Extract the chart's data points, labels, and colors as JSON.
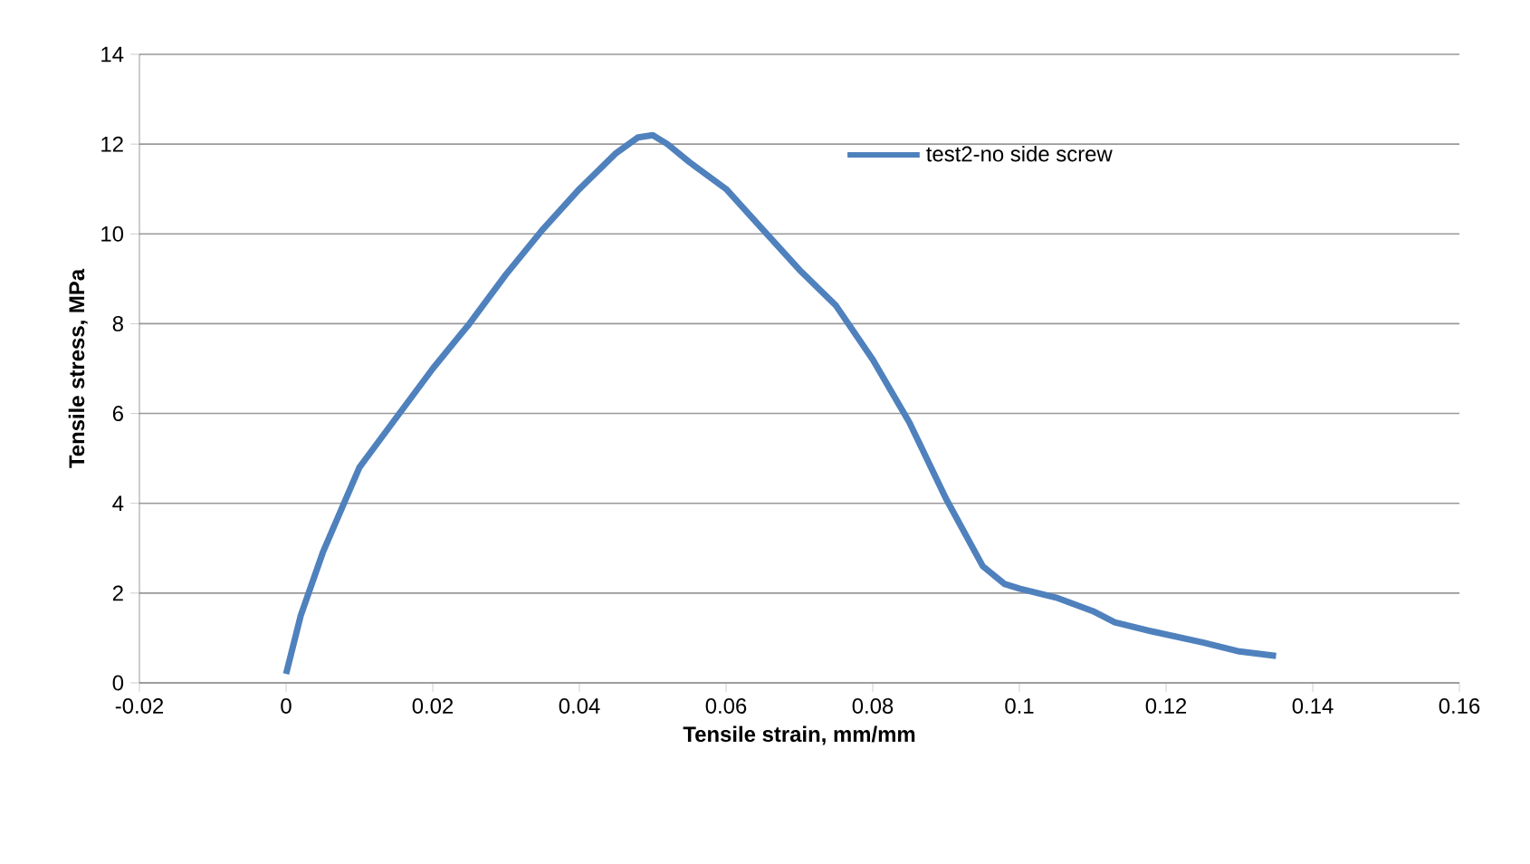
{
  "chart_data": {
    "type": "line",
    "xlabel": "Tensile strain, mm/mm",
    "ylabel": "Tensile stress, MPa",
    "series": [
      {
        "name": "test2-no side screw",
        "color": "#4f81bd",
        "x": [
          0,
          0.002,
          0.005,
          0.01,
          0.015,
          0.02,
          0.025,
          0.03,
          0.035,
          0.04,
          0.045,
          0.048,
          0.05,
          0.052,
          0.055,
          0.06,
          0.065,
          0.07,
          0.075,
          0.08,
          0.085,
          0.09,
          0.095,
          0.098,
          0.1,
          0.105,
          0.11,
          0.113,
          0.118,
          0.125,
          0.13,
          0.135
        ],
        "values": [
          0.2,
          1.5,
          2.9,
          4.8,
          5.9,
          7.0,
          8.0,
          9.1,
          10.1,
          11.0,
          11.8,
          12.15,
          12.2,
          12.0,
          11.6,
          11.0,
          10.1,
          9.2,
          8.4,
          7.2,
          5.8,
          4.1,
          2.6,
          2.2,
          2.1,
          1.9,
          1.6,
          1.35,
          1.15,
          0.9,
          0.7,
          0.6
        ]
      }
    ],
    "xlim": [
      -0.02,
      0.16
    ],
    "xticks": [
      -0.02,
      0,
      0.02,
      0.04,
      0.06,
      0.08,
      0.1,
      0.12,
      0.14,
      0.16
    ],
    "ylim": [
      0,
      14
    ],
    "yticks": [
      0,
      2,
      4,
      6,
      8,
      10,
      12,
      14
    ],
    "grid": "y",
    "legend": "top right",
    "marker": "none",
    "line_style": "solid"
  }
}
